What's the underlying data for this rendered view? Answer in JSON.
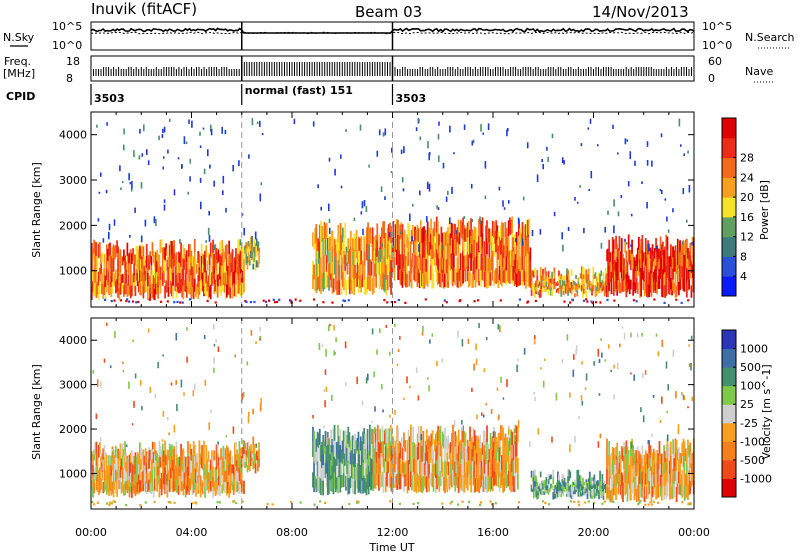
{
  "header": {
    "station": "Inuvik (fitACF)",
    "beam": "Beam 03",
    "date": "14/Nov/2013"
  },
  "status_panel": {
    "nsky_label": "N.Sky",
    "nsky_ticks": [
      "10^5",
      "10^0"
    ],
    "nsearch_label": "N.Search",
    "nsearch_ticks": [
      "10^5",
      "10^0"
    ],
    "freq_label": "Freq.",
    "freq_unit": "[MHz]",
    "freq_ticks": [
      "18",
      "8"
    ],
    "nave_label": "Nave",
    "nave_ticks": [
      "60",
      "0"
    ],
    "cpid_label": "CPID",
    "cpid_segments": [
      {
        "label": "3503",
        "start_h": 0,
        "end_h": 6.0
      },
      {
        "label": "normal (fast) 151",
        "start_h": 6.0,
        "end_h": 12.0
      },
      {
        "label": "3503",
        "start_h": 12.0,
        "end_h": 24.0
      }
    ]
  },
  "chart_data": [
    {
      "type": "heatmap",
      "title": "Power",
      "ylabel": "Slant Range [km]",
      "xlabel": "",
      "xlim": [
        0,
        24
      ],
      "ylim": [
        200,
        4500
      ],
      "yticks": [
        1000,
        2000,
        3000,
        4000
      ],
      "colorbar": {
        "label": "Power [dB]",
        "ticks": [
          "4",
          "8",
          "12",
          "16",
          "20",
          "24",
          "28"
        ],
        "colors": [
          "#0a1aff",
          "#2a4fd8",
          "#3f7a7f",
          "#5fa060",
          "#f7e32a",
          "#f5a11f",
          "#f26a1b",
          "#ee2b19",
          "#e00000"
        ]
      },
      "bands": [
        {
          "x0": 0.0,
          "x1": 6.1,
          "y0": 350,
          "y1": 1700,
          "value_db": 22
        },
        {
          "x0": 6.1,
          "x1": 6.7,
          "y0": 1000,
          "y1": 1900,
          "value_db": 14
        },
        {
          "x0": 8.8,
          "x1": 12.0,
          "y0": 450,
          "y1": 2100,
          "value_db": 18
        },
        {
          "x0": 12.0,
          "x1": 17.5,
          "y0": 600,
          "y1": 2200,
          "value_db": 20
        },
        {
          "x0": 17.5,
          "x1": 20.5,
          "y0": 400,
          "y1": 1100,
          "value_db": 18
        },
        {
          "x0": 20.5,
          "x1": 24.0,
          "y0": 400,
          "y1": 1800,
          "value_db": 24
        }
      ]
    },
    {
      "type": "heatmap",
      "title": "Velocity",
      "ylabel": "Slant Range [km]",
      "xlabel": "Time UT",
      "xlim": [
        0,
        24
      ],
      "ylim": [
        200,
        4500
      ],
      "xticks": [
        "00:00",
        "04:00",
        "08:00",
        "12:00",
        "16:00",
        "20:00",
        "00:00"
      ],
      "yticks": [
        1000,
        2000,
        3000,
        4000
      ],
      "colorbar": {
        "label": "Velocity [m s^-1]",
        "ticks": [
          "1000",
          "500",
          "100",
          "25",
          "-25",
          "-100",
          "-500",
          "-1000"
        ],
        "colors": [
          "#2a35b8",
          "#3f6fa7",
          "#448f6c",
          "#7fc84a",
          "#cfcfcf",
          "#f5a11f",
          "#f57f1b",
          "#f04a1a",
          "#e00000"
        ]
      },
      "bands": [
        {
          "x0": 0.0,
          "x1": 6.1,
          "y0": 450,
          "y1": 1750,
          "value_mps": -100
        },
        {
          "x0": 6.1,
          "x1": 6.7,
          "y0": 1000,
          "y1": 1900,
          "value_mps": -100
        },
        {
          "x0": 8.8,
          "x1": 11.2,
          "y0": 500,
          "y1": 2100,
          "value_mps": 100
        },
        {
          "x0": 11.2,
          "x1": 17.0,
          "y0": 550,
          "y1": 2100,
          "value_mps": -100
        },
        {
          "x0": 17.5,
          "x1": 20.5,
          "y0": 400,
          "y1": 1100,
          "value_mps": 100
        },
        {
          "x0": 20.5,
          "x1": 24.0,
          "y0": 350,
          "y1": 1800,
          "value_mps": -100
        }
      ]
    }
  ]
}
